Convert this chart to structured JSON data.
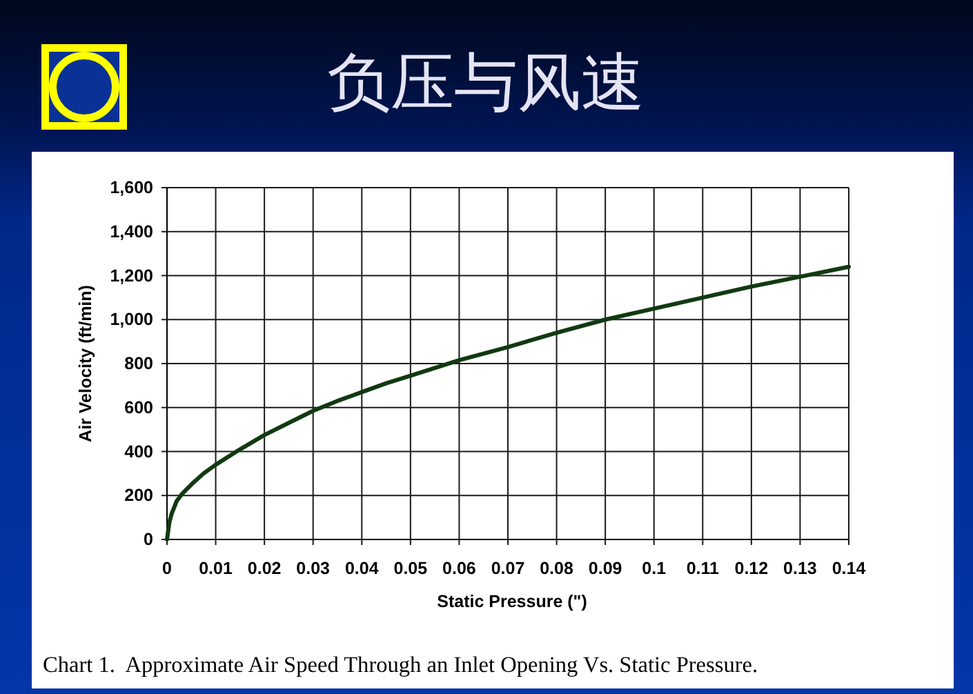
{
  "chart_data": {
    "type": "line",
    "title": "负压与风速",
    "xlabel": "Static Pressure (\")",
    "ylabel": "Air Velocity (ft/min)",
    "annotations": [
      "Chart 1.  Approximate Air Speed Through an Inlet Opening Vs. Static Pressure."
    ],
    "x": [
      0,
      0.0005,
      0.001,
      0.002,
      0.003,
      0.005,
      0.0075,
      0.01,
      0.015,
      0.02,
      0.025,
      0.03,
      0.035,
      0.04,
      0.045,
      0.05,
      0.055,
      0.06,
      0.065,
      0.07,
      0.08,
      0.09,
      0.1,
      0.11,
      0.12,
      0.13,
      0.14
    ],
    "values": [
      0,
      80,
      120,
      175,
      205,
      250,
      300,
      340,
      410,
      475,
      530,
      585,
      630,
      670,
      710,
      745,
      780,
      815,
      845,
      875,
      940,
      1000,
      1050,
      1100,
      1150,
      1195,
      1240
    ],
    "color": "#113a11",
    "line_style": "solid",
    "grid": true,
    "xlim": [
      0,
      0.14
    ],
    "xticks": [
      0,
      0.01,
      0.02,
      0.03,
      0.04,
      0.05,
      0.06,
      0.07,
      0.08,
      0.09,
      0.1,
      0.11,
      0.12,
      0.13,
      0.14
    ],
    "ylim": [
      0,
      1600
    ],
    "yticks": [
      0,
      200,
      400,
      600,
      800,
      {
        "value": 1000,
        "label": "1,000"
      },
      {
        "value": 1200,
        "label": "1,200"
      },
      {
        "value": 1400,
        "label": "1,400"
      },
      {
        "value": 1600,
        "label": "1,600"
      }
    ]
  }
}
